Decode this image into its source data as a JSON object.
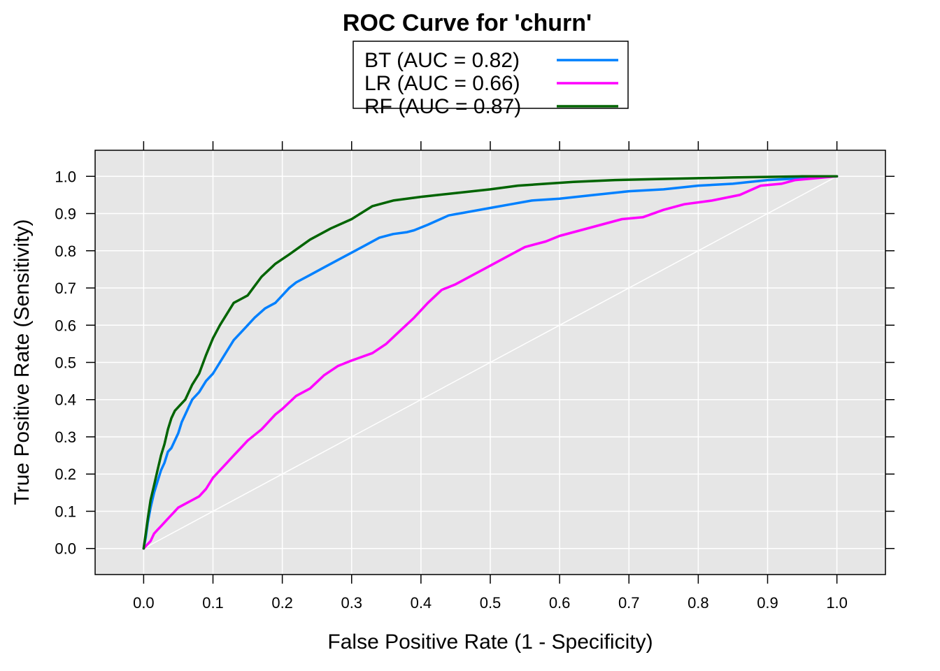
{
  "chart_data": {
    "type": "line",
    "title": "ROC Curve for 'churn'",
    "xlabel": "False Positive Rate (1 - Specificity)",
    "ylabel": "True Positive Rate (Sensitivity)",
    "xlim": [
      -0.07,
      1.07
    ],
    "ylim": [
      -0.07,
      1.07
    ],
    "x_ticks": [
      "0.0",
      "0.1",
      "0.2",
      "0.3",
      "0.4",
      "0.5",
      "0.6",
      "0.7",
      "0.8",
      "0.9",
      "1.0"
    ],
    "y_ticks": [
      "0.0",
      "0.1",
      "0.2",
      "0.3",
      "0.4",
      "0.5",
      "0.6",
      "0.7",
      "0.8",
      "0.9",
      "1.0"
    ],
    "grid": true,
    "legend_position": "top-center",
    "background_color": "#e6e6e6",
    "grid_color": "#ffffff",
    "diagonal_reference": true,
    "series": [
      {
        "name": "BT (AUC = 0.82)",
        "color": "#0080ff",
        "x": [
          0.0,
          0.003,
          0.006,
          0.01,
          0.015,
          0.02,
          0.025,
          0.03,
          0.035,
          0.04,
          0.045,
          0.05,
          0.055,
          0.06,
          0.065,
          0.07,
          0.08,
          0.09,
          0.1,
          0.11,
          0.12,
          0.13,
          0.14,
          0.15,
          0.16,
          0.175,
          0.19,
          0.2,
          0.21,
          0.22,
          0.24,
          0.26,
          0.28,
          0.3,
          0.32,
          0.34,
          0.36,
          0.38,
          0.39,
          0.41,
          0.44,
          0.47,
          0.5,
          0.53,
          0.56,
          0.6,
          0.65,
          0.7,
          0.75,
          0.8,
          0.85,
          0.9,
          0.95,
          1.0
        ],
        "y": [
          0.0,
          0.03,
          0.07,
          0.11,
          0.15,
          0.18,
          0.21,
          0.23,
          0.26,
          0.27,
          0.29,
          0.31,
          0.34,
          0.36,
          0.38,
          0.4,
          0.42,
          0.45,
          0.47,
          0.5,
          0.53,
          0.56,
          0.58,
          0.6,
          0.62,
          0.645,
          0.66,
          0.68,
          0.7,
          0.715,
          0.735,
          0.755,
          0.775,
          0.795,
          0.815,
          0.835,
          0.845,
          0.85,
          0.855,
          0.87,
          0.895,
          0.905,
          0.915,
          0.925,
          0.935,
          0.94,
          0.95,
          0.96,
          0.965,
          0.975,
          0.98,
          0.99,
          0.995,
          1.0
        ]
      },
      {
        "name": "LR (AUC = 0.66)",
        "color": "#ff00ff",
        "x": [
          0.0,
          0.01,
          0.015,
          0.02,
          0.025,
          0.03,
          0.035,
          0.04,
          0.045,
          0.05,
          0.06,
          0.07,
          0.08,
          0.09,
          0.1,
          0.11,
          0.12,
          0.13,
          0.14,
          0.15,
          0.16,
          0.17,
          0.18,
          0.19,
          0.2,
          0.22,
          0.24,
          0.26,
          0.28,
          0.3,
          0.33,
          0.35,
          0.37,
          0.39,
          0.41,
          0.43,
          0.45,
          0.48,
          0.5,
          0.53,
          0.55,
          0.58,
          0.6,
          0.63,
          0.66,
          0.69,
          0.72,
          0.75,
          0.78,
          0.82,
          0.86,
          0.89,
          0.92,
          0.94,
          0.97,
          1.0
        ],
        "y": [
          0.0,
          0.02,
          0.04,
          0.05,
          0.06,
          0.07,
          0.08,
          0.09,
          0.1,
          0.11,
          0.12,
          0.13,
          0.14,
          0.16,
          0.19,
          0.21,
          0.23,
          0.25,
          0.27,
          0.29,
          0.305,
          0.32,
          0.34,
          0.36,
          0.375,
          0.41,
          0.43,
          0.465,
          0.49,
          0.505,
          0.525,
          0.55,
          0.585,
          0.62,
          0.66,
          0.695,
          0.71,
          0.74,
          0.76,
          0.79,
          0.81,
          0.825,
          0.84,
          0.855,
          0.87,
          0.885,
          0.89,
          0.91,
          0.925,
          0.935,
          0.95,
          0.975,
          0.98,
          0.99,
          0.995,
          1.0
        ]
      },
      {
        "name": "RF (AUC = 0.87)",
        "color": "#006400",
        "x": [
          0.0,
          0.003,
          0.006,
          0.01,
          0.015,
          0.02,
          0.025,
          0.03,
          0.035,
          0.04,
          0.045,
          0.05,
          0.06,
          0.07,
          0.08,
          0.09,
          0.1,
          0.11,
          0.12,
          0.13,
          0.14,
          0.15,
          0.16,
          0.17,
          0.19,
          0.21,
          0.24,
          0.27,
          0.3,
          0.33,
          0.36,
          0.4,
          0.45,
          0.5,
          0.54,
          0.58,
          0.62,
          0.68,
          0.75,
          0.85,
          0.95,
          1.0
        ],
        "y": [
          0.0,
          0.04,
          0.08,
          0.13,
          0.17,
          0.21,
          0.25,
          0.28,
          0.32,
          0.35,
          0.37,
          0.38,
          0.4,
          0.44,
          0.47,
          0.52,
          0.565,
          0.6,
          0.63,
          0.66,
          0.67,
          0.68,
          0.705,
          0.73,
          0.765,
          0.79,
          0.83,
          0.86,
          0.885,
          0.92,
          0.935,
          0.945,
          0.955,
          0.965,
          0.975,
          0.98,
          0.985,
          0.99,
          0.993,
          0.997,
          1.0,
          1.0
        ]
      }
    ]
  }
}
